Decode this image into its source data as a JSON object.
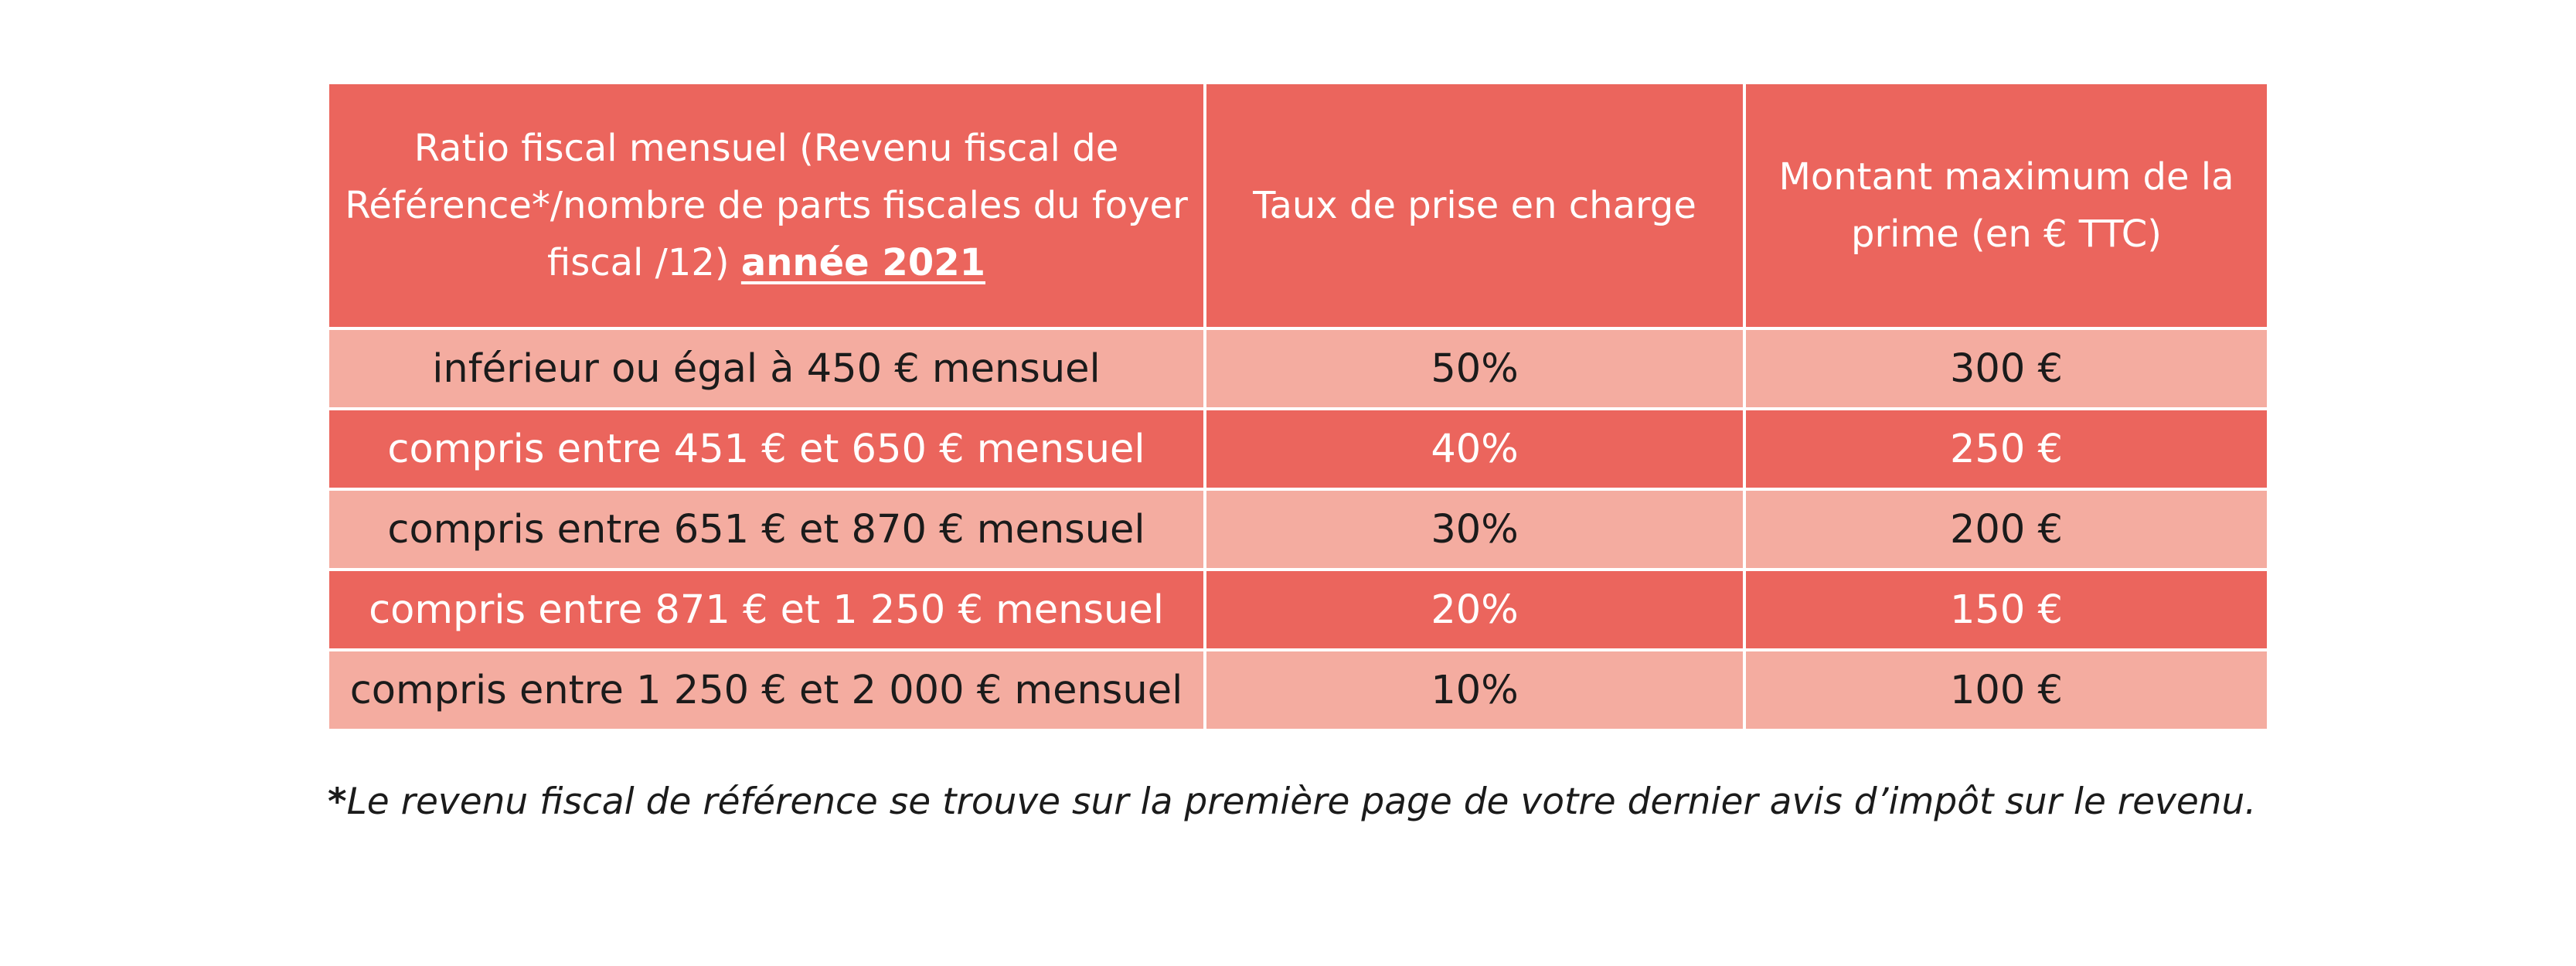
{
  "table": {
    "headers": {
      "col1_main": "Ratio fiscal mensuel (Revenu fiscal de Référence*/nombre de parts fiscales du foyer fiscal /12)",
      "col1_year": "année 2021",
      "col2": "Taux de prise en charge",
      "col3": "Montant maximum de la prime (en € TTC)"
    },
    "rows": [
      {
        "ratio": "inférieur ou égal à 450 € mensuel",
        "taux": "50%",
        "montant": "300 €"
      },
      {
        "ratio": "compris entre 451 € et 650 € mensuel",
        "taux": "40%",
        "montant": "250 €"
      },
      {
        "ratio": "compris entre 651 € et 870 € mensuel",
        "taux": "30%",
        "montant": "200 €"
      },
      {
        "ratio": "compris entre 871 € et 1 250 € mensuel",
        "taux": "20%",
        "montant": "150 €"
      },
      {
        "ratio": "compris entre 1 250 € et 2 000 € mensuel",
        "taux": "10%",
        "montant": "100 €"
      }
    ]
  },
  "footnote": {
    "marker": "*",
    "text": "Le revenu fiscal de référence se trouve sur la première page de votre dernier avis d’impôt sur le revenu."
  },
  "colors": {
    "header_bg": "#eb655d",
    "row_dark": "#eb655d",
    "row_light": "#f4aca0",
    "text_dark": "#1b1b1b",
    "text_light": "#ffffff"
  }
}
